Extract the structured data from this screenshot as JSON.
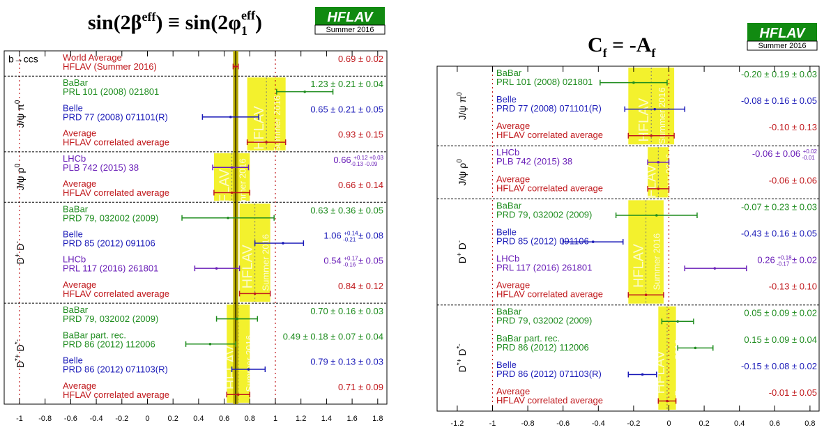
{
  "chart_data": [
    {
      "type": "forest",
      "title": "sin(2βeff) ≡ sin(2φ1eff)",
      "title_parts": {
        "a": "sin(2β",
        "a_sup": "eff",
        "b": ") ≡ sin(2φ",
        "b_sub": "1",
        "b_sup": "eff",
        "c": ")"
      },
      "logo": {
        "name": "HFLAV",
        "season": "Summer 2016"
      },
      "xlim": [
        -1.1,
        1.9
      ],
      "xticks": [
        "-1",
        "-0.8",
        "-0.6",
        "-0.4",
        "-0.2",
        "0",
        "0.2",
        "0.4",
        "0.6",
        "0.8",
        "1",
        "1.2",
        "1.4",
        "1.6",
        "1.8"
      ],
      "reference_lines": [
        -1,
        1
      ],
      "world_average": {
        "value": 0.69,
        "err": 0.02
      },
      "band_label_main": "HFLAV",
      "band_label_sub": "Summer 2016",
      "groups": [
        {
          "label": "b→ccs",
          "rows": [
            {
              "exp": "World Average",
              "ref": "HFLAV (Summer 2016)",
              "text": "0.69 ± 0.02",
              "value": 0.69,
              "lo": 0.67,
              "hi": 0.71,
              "color": "#c0181c"
            }
          ]
        },
        {
          "label": "J/ψ π0",
          "label_main": "J/ψ π",
          "label_sup": "0",
          "band": {
            "value": 0.93,
            "err": 0.15
          },
          "rows": [
            {
              "exp": "BaBar",
              "ref": "PRL 101 (2008) 021801",
              "text": "1.23 ± 0.21 ± 0.04",
              "value": 1.23,
              "lo": 1.01,
              "hi": 1.45,
              "color": "#1e8c1e"
            },
            {
              "exp": "Belle",
              "ref": "PRD 77 (2008) 071101(R)",
              "text": "0.65 ± 0.21 ± 0.05",
              "value": 0.65,
              "lo": 0.43,
              "hi": 0.87,
              "color": "#1a1ab8"
            },
            {
              "exp": "Average",
              "ref": "HFLAV correlated average",
              "text": "0.93 ± 0.15",
              "value": 0.93,
              "lo": 0.78,
              "hi": 1.08,
              "color": "#c0181c"
            }
          ]
        },
        {
          "label": "J/ψ ρ0",
          "label_main": "J/ψ ρ",
          "label_sup": "0",
          "band": {
            "value": 0.66,
            "err": 0.14
          },
          "rows": [
            {
              "exp": "LHCb",
              "ref": "PLB 742 (2015) 38",
              "text_main": "0.66",
              "text_up": "+0.12 +0.03",
              "text_dn": "-0.13 -0.09",
              "value": 0.66,
              "lo": 0.51,
              "hi": 0.79,
              "color": "#6a1fb8"
            },
            {
              "exp": "Average",
              "ref": "HFLAV correlated average",
              "text": "0.66 ± 0.14",
              "value": 0.66,
              "lo": 0.52,
              "hi": 0.8,
              "color": "#c0181c"
            }
          ]
        },
        {
          "label": "D+ D-",
          "label_main": "D",
          "label_sup": "+",
          "label_main2": " D",
          "label_sup2": "-",
          "band": {
            "value": 0.84,
            "err": 0.12
          },
          "rows": [
            {
              "exp": "BaBar",
              "ref": "PRD 79, 032002 (2009)",
              "text": "0.63 ± 0.36 ± 0.05",
              "value": 0.63,
              "lo": 0.27,
              "hi": 0.99,
              "color": "#1e8c1e"
            },
            {
              "exp": "Belle",
              "ref": "PRD 85 (2012) 091106",
              "text_main": "1.06",
              "text_up": "+0.14",
              "text_dn": "-0.21",
              "text_tail": " ± 0.08",
              "value": 1.06,
              "lo": 0.84,
              "hi": 1.22,
              "color": "#1a1ab8"
            },
            {
              "exp": "LHCb",
              "ref": "PRL 117 (2016) 261801",
              "text_main": "0.54",
              "text_up": "+0.17",
              "text_dn": "-0.16",
              "text_tail": " ± 0.05",
              "value": 0.54,
              "lo": 0.37,
              "hi": 0.72,
              "color": "#6a1fb8"
            },
            {
              "exp": "Average",
              "ref": "HFLAV correlated average",
              "text": "0.84 ± 0.12",
              "value": 0.84,
              "lo": 0.72,
              "hi": 0.96,
              "color": "#c0181c"
            }
          ]
        },
        {
          "label": "D*+ D*-",
          "label_main": "D",
          "label_sup": "*+",
          "label_main2": " D",
          "label_sup2": "*-",
          "band": {
            "value": 0.71,
            "err": 0.09
          },
          "rows": [
            {
              "exp": "BaBar",
              "ref": "PRD 79, 032002 (2009)",
              "text": "0.70 ± 0.16 ± 0.03",
              "value": 0.7,
              "lo": 0.54,
              "hi": 0.86,
              "color": "#1e8c1e"
            },
            {
              "exp": "BaBar part. rec.",
              "ref": "PRD 86 (2012) 112006",
              "text": "0.49 ± 0.18 ± 0.07 ± 0.04",
              "value": 0.49,
              "lo": 0.3,
              "hi": 0.69,
              "color": "#1e8c1e"
            },
            {
              "exp": "Belle",
              "ref": "PRD 86 (2012) 071103(R)",
              "text": "0.79 ± 0.13 ± 0.03",
              "value": 0.79,
              "lo": 0.66,
              "hi": 0.92,
              "color": "#1a1ab8"
            },
            {
              "exp": "Average",
              "ref": "HFLAV correlated average",
              "text": "0.71 ± 0.09",
              "value": 0.71,
              "lo": 0.62,
              "hi": 0.8,
              "color": "#c0181c"
            }
          ]
        }
      ]
    },
    {
      "type": "forest",
      "title": "Cf = -Af",
      "title_parts": {
        "a": "C",
        "a_sub": "f",
        "b": " = -A",
        "b_sub": "f"
      },
      "logo": {
        "name": "HFLAV",
        "season": "Summer 2016"
      },
      "xlim": [
        -1.3,
        0.95
      ],
      "xticks": [
        "-1.2",
        "-1",
        "-0.8",
        "-0.6",
        "-0.4",
        "-0.2",
        "0",
        "0.2",
        "0.4",
        "0.6",
        "0.8"
      ],
      "reference_lines": [
        -1,
        0
      ],
      "band_label_main": "HFLAV",
      "band_label_sub": "Summer 2016",
      "groups": [
        {
          "label": "J/ψ π0",
          "label_main": "J/ψ π",
          "label_sup": "0",
          "band": {
            "value": -0.1,
            "err": 0.13
          },
          "rows": [
            {
              "exp": "BaBar",
              "ref": "PRL 101 (2008) 021801",
              "text": "-0.20 ± 0.19 ± 0.03",
              "value": -0.2,
              "lo": -0.39,
              "hi": -0.01,
              "color": "#1e8c1e"
            },
            {
              "exp": "Belle",
              "ref": "PRD 77 (2008) 071101(R)",
              "text": "-0.08 ± 0.16 ± 0.05",
              "value": -0.08,
              "lo": -0.25,
              "hi": 0.09,
              "color": "#1a1ab8"
            },
            {
              "exp": "Average",
              "ref": "HFLAV correlated average",
              "text": "-0.10 ± 0.13",
              "value": -0.1,
              "lo": -0.23,
              "hi": 0.03,
              "color": "#c0181c"
            }
          ]
        },
        {
          "label": "J/ψ ρ0",
          "label_main": "J/ψ ρ",
          "label_sup": "0",
          "band": {
            "value": -0.06,
            "err": 0.06
          },
          "rows": [
            {
              "exp": "LHCb",
              "ref": "PLB 742 (2015) 38",
              "text_main": "-0.06 ± 0.06",
              "text_up": "+0.02",
              "text_dn": "-0.01",
              "value": -0.06,
              "lo": -0.12,
              "hi": 0.0,
              "color": "#6a1fb8"
            },
            {
              "exp": "Average",
              "ref": "HFLAV correlated average",
              "text": "-0.06 ± 0.06",
              "value": -0.06,
              "lo": -0.12,
              "hi": 0.0,
              "color": "#c0181c"
            }
          ]
        },
        {
          "label": "D+ D-",
          "label_main": "D",
          "label_sup": "+",
          "label_main2": " D",
          "label_sup2": "-",
          "band": {
            "value": -0.13,
            "err": 0.1
          },
          "rows": [
            {
              "exp": "BaBar",
              "ref": "PRD 79, 032002 (2009)",
              "text": "-0.07 ± 0.23 ± 0.03",
              "value": -0.07,
              "lo": -0.3,
              "hi": 0.16,
              "color": "#1e8c1e"
            },
            {
              "exp": "Belle",
              "ref": "PRD 85 (2012) 091106",
              "text": "-0.43 ± 0.16 ± 0.05",
              "value": -0.43,
              "lo": -0.6,
              "hi": -0.26,
              "color": "#1a1ab8"
            },
            {
              "exp": "LHCb",
              "ref": "PRL 117 (2016) 261801",
              "text_main": "0.26",
              "text_up": "+0.18",
              "text_dn": "-0.17",
              "text_tail": " ± 0.02",
              "value": 0.26,
              "lo": 0.09,
              "hi": 0.44,
              "color": "#6a1fb8"
            },
            {
              "exp": "Average",
              "ref": "HFLAV correlated average",
              "text": "-0.13 ± 0.10",
              "value": -0.13,
              "lo": -0.23,
              "hi": -0.03,
              "color": "#c0181c"
            }
          ]
        },
        {
          "label": "D*+ D*-",
          "label_main": "D",
          "label_sup": "*+",
          "label_main2": " D",
          "label_sup2": "*-",
          "band": {
            "value": -0.01,
            "err": 0.05
          },
          "rows": [
            {
              "exp": "BaBar",
              "ref": "PRD 79, 032002 (2009)",
              "text": "0.05 ± 0.09 ± 0.02",
              "value": 0.05,
              "lo": -0.04,
              "hi": 0.14,
              "color": "#1e8c1e"
            },
            {
              "exp": "BaBar part. rec.",
              "ref": "PRD 86 (2012) 112006",
              "text": "0.15 ± 0.09 ± 0.04",
              "value": 0.15,
              "lo": 0.05,
              "hi": 0.25,
              "color": "#1e8c1e"
            },
            {
              "exp": "Belle",
              "ref": "PRD 86 (2012) 071103(R)",
              "text": "-0.15 ± 0.08 ± 0.02",
              "value": -0.15,
              "lo": -0.23,
              "hi": -0.07,
              "color": "#1a1ab8"
            },
            {
              "exp": "Average",
              "ref": "HFLAV correlated average",
              "text": "-0.01 ± 0.05",
              "value": -0.01,
              "lo": -0.06,
              "hi": 0.04,
              "color": "#c0181c"
            }
          ]
        }
      ]
    }
  ]
}
